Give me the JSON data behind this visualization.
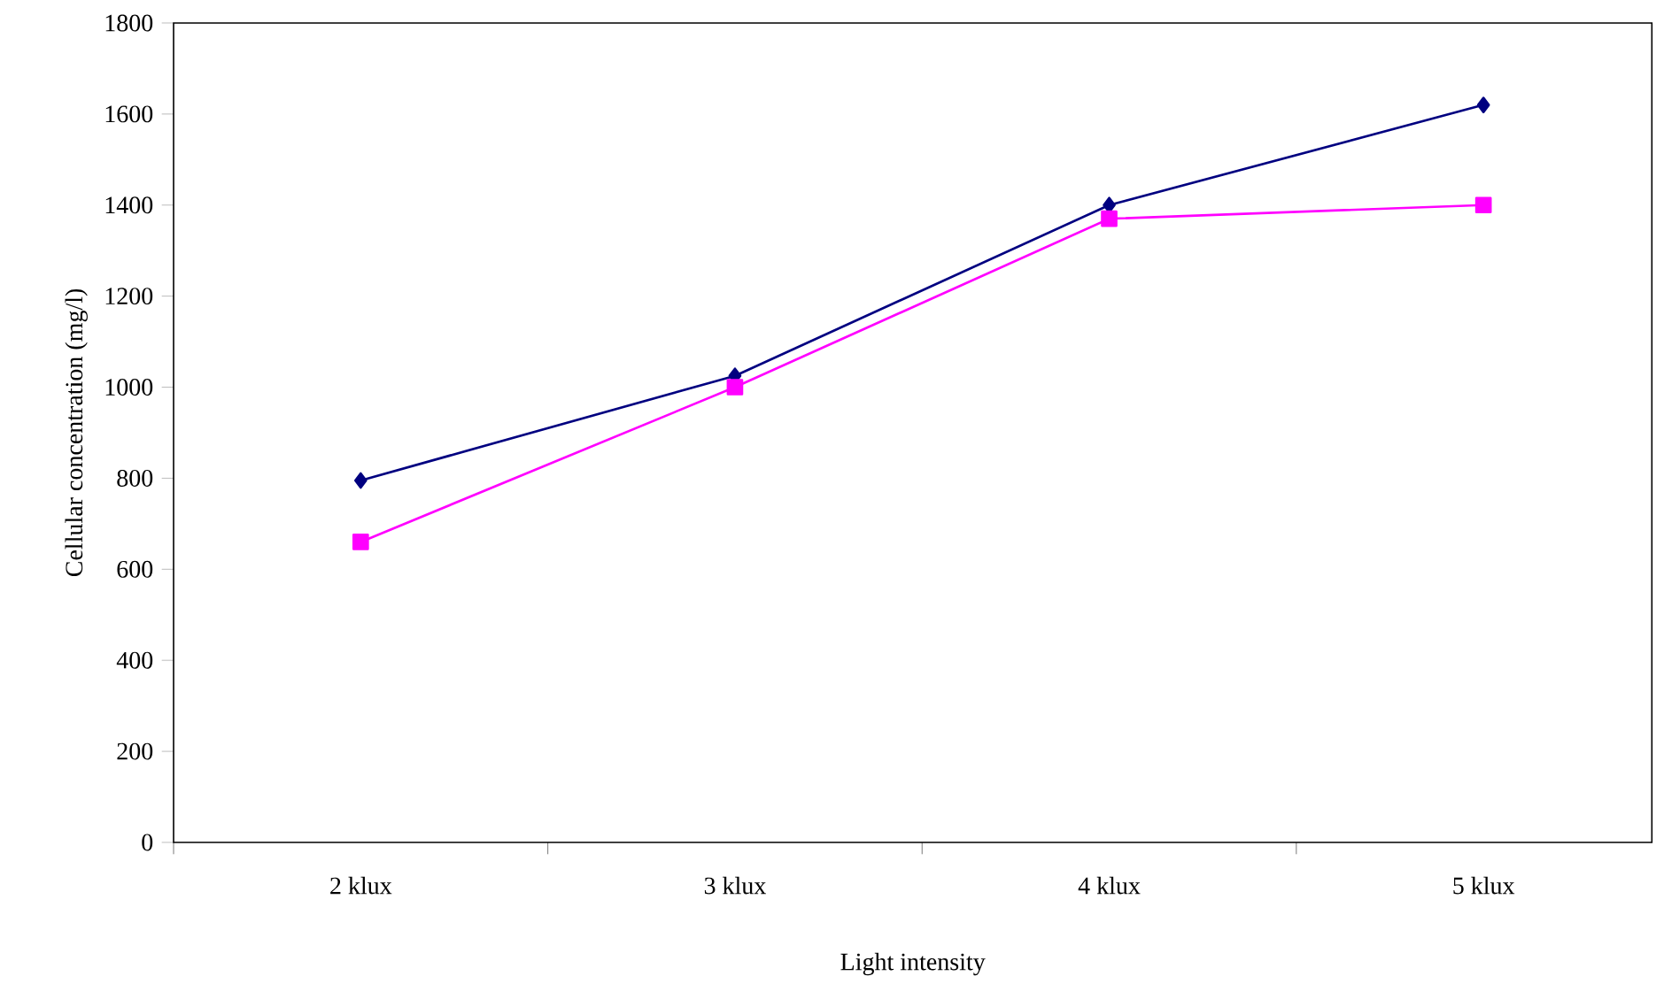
{
  "chart_data": {
    "type": "line",
    "xlabel": "Light   intensity",
    "ylabel": "Cellular concentration (mg/l)",
    "categories": [
      "2 klux",
      "3 klux",
      "4 klux",
      "5 klux"
    ],
    "series": [
      {
        "color": "#000080",
        "marker": "diamond",
        "values": [
          795,
          1025,
          1400,
          1620
        ]
      },
      {
        "color": "#ff00ff",
        "marker": "square",
        "values": [
          660,
          1000,
          1370,
          1400
        ]
      }
    ],
    "ylim": [
      0,
      1800
    ],
    "yticks": [
      0,
      200,
      400,
      600,
      800,
      1000,
      1200,
      1400,
      1600,
      1800
    ],
    "line_style": "solid"
  }
}
